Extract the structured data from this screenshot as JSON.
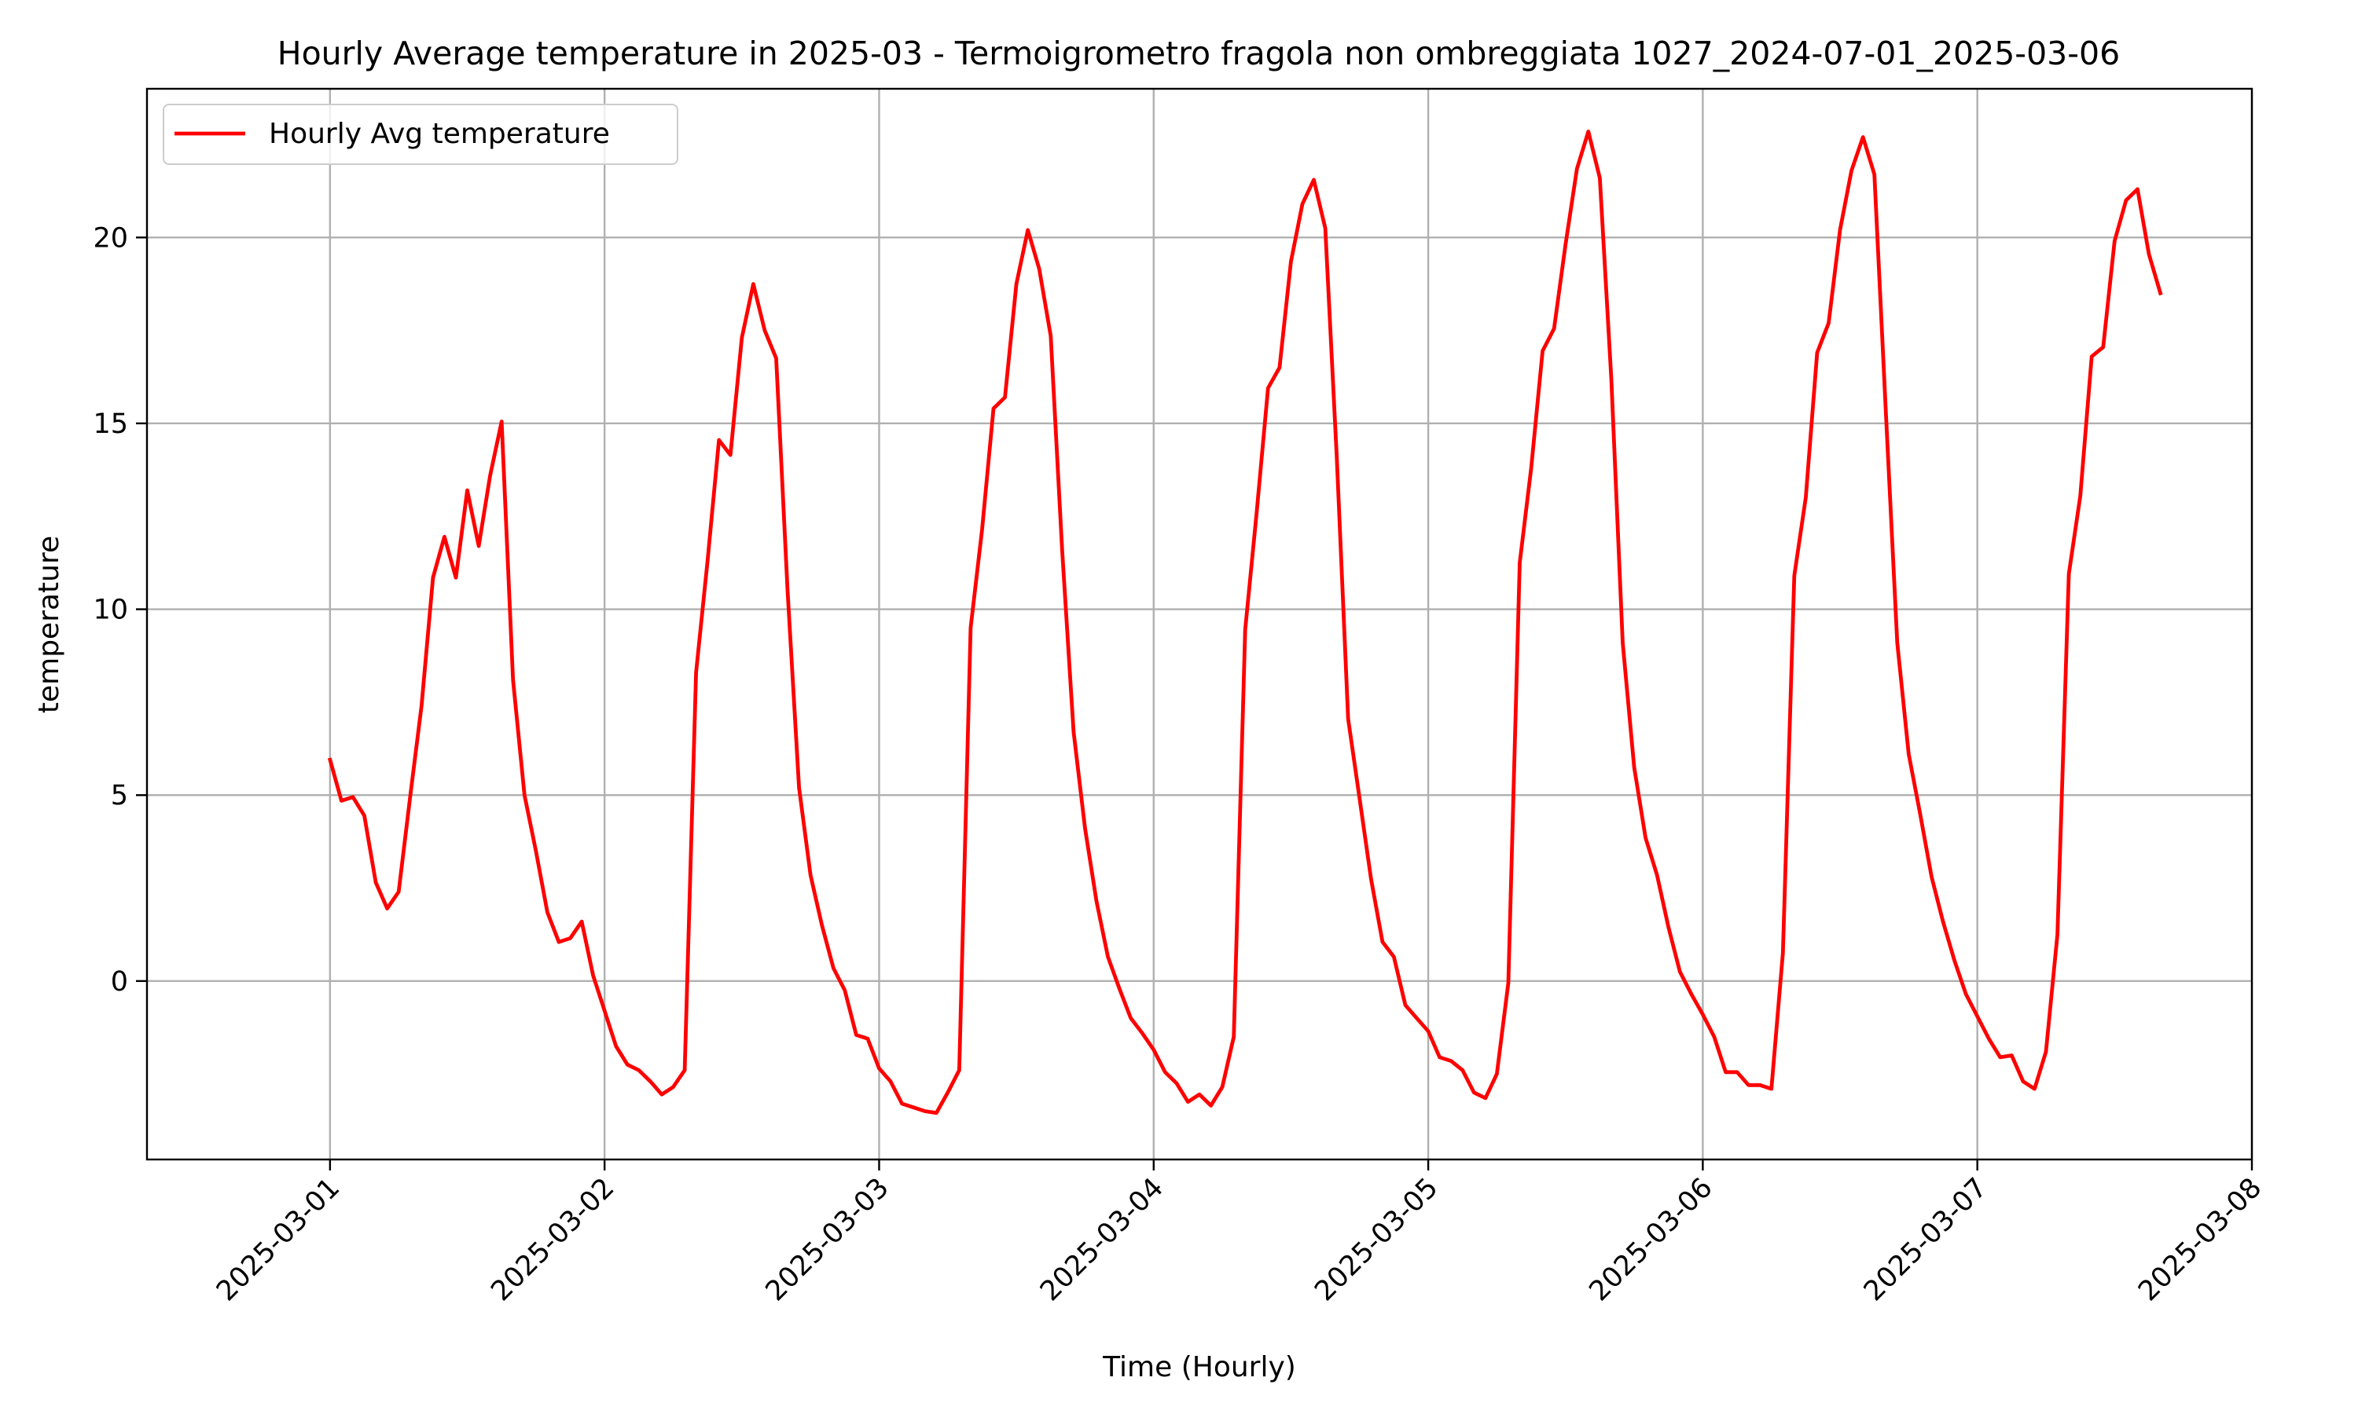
{
  "chart_data": {
    "type": "line",
    "title": "Hourly Average temperature in 2025-03 - Termoigrometro fragola non ombreggiata 1027_2024-07-01_2025-03-06",
    "xlabel": "Time (Hourly)",
    "ylabel": "temperature",
    "x_tick_labels": [
      "2025-03-01",
      "2025-03-02",
      "2025-03-03",
      "2025-03-04",
      "2025-03-05",
      "2025-03-06",
      "2025-03-07",
      "2025-03-08"
    ],
    "y_tick_labels": [
      "0",
      "5",
      "10",
      "15",
      "20"
    ],
    "y_ticks": [
      0,
      5,
      10,
      15,
      20
    ],
    "xlim": [
      "2025-02-28 08:00",
      "2025-03-08 00:00"
    ],
    "ylim": [
      -4.8,
      24.0
    ],
    "grid": true,
    "legend_position": "top-left",
    "series": [
      {
        "name": "Hourly Avg temperature",
        "color": "#ff0000",
        "start": "2025-03-01 00:00",
        "interval": "1h",
        "values": [
          5.95,
          4.85,
          4.95,
          4.45,
          2.65,
          1.95,
          2.4,
          4.95,
          7.4,
          10.85,
          11.95,
          10.85,
          13.2,
          11.7,
          13.6,
          15.05,
          8.1,
          5.0,
          3.5,
          1.85,
          1.05,
          1.15,
          1.6,
          0.15,
          -0.8,
          -1.75,
          -2.25,
          -2.4,
          -2.7,
          -3.05,
          -2.85,
          -2.4,
          8.3,
          11.3,
          14.55,
          14.15,
          17.3,
          18.75,
          17.5,
          16.75,
          10.5,
          5.2,
          2.85,
          1.5,
          0.35,
          -0.25,
          -1.45,
          -1.55,
          -2.35,
          -2.7,
          -3.3,
          -3.4,
          -3.5,
          -3.55,
          -3.0,
          -2.4,
          9.5,
          12.15,
          15.4,
          15.7,
          18.75,
          20.2,
          19.15,
          17.35,
          11.6,
          6.7,
          4.1,
          2.15,
          0.65,
          -0.2,
          -1.0,
          -1.4,
          -1.85,
          -2.45,
          -2.75,
          -3.25,
          -3.05,
          -3.35,
          -2.85,
          -1.5,
          9.45,
          12.6,
          15.95,
          16.5,
          19.35,
          20.9,
          21.55,
          20.25,
          14.1,
          7.05,
          4.9,
          2.75,
          1.05,
          0.65,
          -0.65,
          -1.0,
          -1.35,
          -2.05,
          -2.15,
          -2.4,
          -3.0,
          -3.15,
          -2.5,
          -0.05,
          11.25,
          13.8,
          16.95,
          17.55,
          19.8,
          21.85,
          22.85,
          21.6,
          16.2,
          9.1,
          5.75,
          3.85,
          2.85,
          1.45,
          0.25,
          -0.35,
          -0.9,
          -1.5,
          -2.45,
          -2.45,
          -2.8,
          -2.8,
          -2.9,
          0.75,
          10.9,
          13.0,
          16.9,
          17.7,
          20.2,
          21.8,
          22.7,
          21.7,
          15.3,
          9.1,
          6.1,
          4.5,
          2.8,
          1.6,
          0.55,
          -0.35,
          -0.95,
          -1.55,
          -2.05,
          -2.0,
          -2.7,
          -2.9,
          -1.9,
          1.25,
          10.95,
          13.05,
          16.8,
          17.05,
          19.9,
          21.0,
          21.3,
          19.55,
          18.5
        ]
      }
    ]
  }
}
